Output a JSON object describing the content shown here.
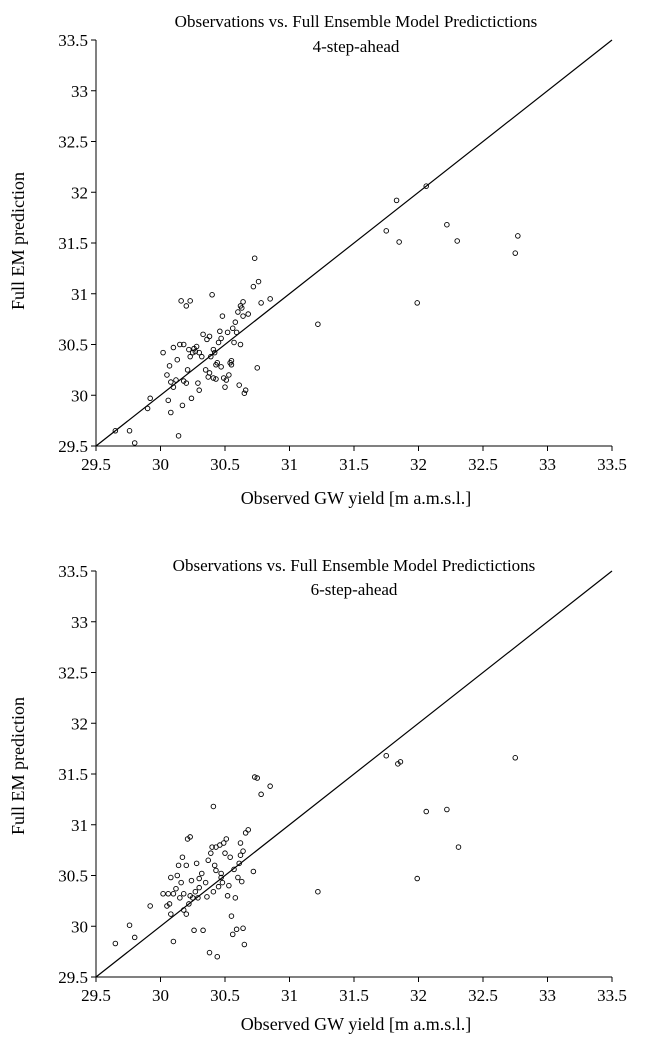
{
  "chart_data": [
    {
      "type": "scatter",
      "title": "Observations vs. Full Ensemble Model Predictictions",
      "subtitle": "4-step-ahead",
      "xlabel": "Observed GW yield [m a.m.s.l.]",
      "ylabel": "Full EM prediction",
      "xlim": [
        29.5,
        33.5
      ],
      "ylim": [
        29.5,
        33.5
      ],
      "xticks": [
        "29.5",
        "30",
        "30.5",
        "31",
        "31.5",
        "32",
        "32.5",
        "33",
        "33.5"
      ],
      "yticks": [
        "29.5",
        "30",
        "30.5",
        "31",
        "31.5",
        "32",
        "32.5",
        "33",
        "33.5"
      ],
      "grid": false,
      "reference_line": {
        "x": [
          29.5,
          33.5
        ],
        "y": [
          29.5,
          33.5
        ]
      },
      "series": [
        {
          "x": [
            29.65,
            29.76,
            29.8,
            29.9,
            29.92,
            30.02,
            30.05,
            30.06,
            30.07,
            30.08,
            30.08,
            30.1,
            30.1,
            30.12,
            30.13,
            30.14,
            30.15,
            30.16,
            30.17,
            30.18,
            30.18,
            30.2,
            30.2,
            30.21,
            30.22,
            30.23,
            30.23,
            30.24,
            30.25,
            30.26,
            30.27,
            30.28,
            30.29,
            30.3,
            30.3,
            30.32,
            30.33,
            30.35,
            30.36,
            30.37,
            30.38,
            30.38,
            30.39,
            30.4,
            30.41,
            30.41,
            30.42,
            30.43,
            30.43,
            30.44,
            30.45,
            30.46,
            30.47,
            30.47,
            30.48,
            30.49,
            30.5,
            30.51,
            30.52,
            30.53,
            30.54,
            30.55,
            30.55,
            30.56,
            30.57,
            30.58,
            30.59,
            30.6,
            30.61,
            30.62,
            30.62,
            30.63,
            30.64,
            30.64,
            30.65,
            30.66,
            30.68,
            30.72,
            30.73,
            30.75,
            30.76,
            30.78,
            30.85,
            31.22,
            31.75,
            31.83,
            31.85,
            31.99,
            32.06,
            32.22,
            32.3,
            32.75,
            32.77
          ],
          "y": [
            29.65,
            29.65,
            29.53,
            29.87,
            29.97,
            30.42,
            30.2,
            29.95,
            30.29,
            30.13,
            29.83,
            30.08,
            30.47,
            30.15,
            30.35,
            29.6,
            30.5,
            30.93,
            29.9,
            30.14,
            30.5,
            30.12,
            30.88,
            30.25,
            30.45,
            30.38,
            30.93,
            29.97,
            30.42,
            30.46,
            30.43,
            30.48,
            30.12,
            30.42,
            30.05,
            30.38,
            30.6,
            30.25,
            30.55,
            30.18,
            30.58,
            30.22,
            30.38,
            30.99,
            30.45,
            30.17,
            30.42,
            30.3,
            30.16,
            30.32,
            30.52,
            30.63,
            30.56,
            30.28,
            30.78,
            30.17,
            30.08,
            30.15,
            30.62,
            30.2,
            30.32,
            30.34,
            30.3,
            30.66,
            30.52,
            30.72,
            30.62,
            30.82,
            30.1,
            30.88,
            30.5,
            30.86,
            30.92,
            30.78,
            30.02,
            30.05,
            30.8,
            31.07,
            31.35,
            30.27,
            31.12,
            30.91,
            30.95,
            30.7,
            31.62,
            31.92,
            31.51,
            30.91,
            32.06,
            31.68,
            31.52,
            31.4,
            31.57
          ]
        }
      ]
    },
    {
      "type": "scatter",
      "title": "Observations vs. Full Ensemble Model Predictictions",
      "subtitle": "6-step-ahead",
      "xlabel": "Observed GW yield [m a.m.s.l.]",
      "ylabel": "Full EM prediction",
      "xlim": [
        29.5,
        33.5
      ],
      "ylim": [
        29.5,
        33.5
      ],
      "xticks": [
        "29.5",
        "30",
        "30.5",
        "31",
        "31.5",
        "32",
        "32.5",
        "33",
        "33.5"
      ],
      "yticks": [
        "29.5",
        "30",
        "30.5",
        "31",
        "31.5",
        "32",
        "32.5",
        "33",
        "33.5"
      ],
      "grid": false,
      "reference_line": {
        "x": [
          29.5,
          33.5
        ],
        "y": [
          29.5,
          33.5
        ]
      },
      "series": [
        {
          "x": [
            29.65,
            29.76,
            29.8,
            29.92,
            30.02,
            30.05,
            30.06,
            30.07,
            30.08,
            30.08,
            30.1,
            30.1,
            30.12,
            30.13,
            30.14,
            30.15,
            30.16,
            30.17,
            30.18,
            30.18,
            30.2,
            30.2,
            30.21,
            30.22,
            30.23,
            30.23,
            30.24,
            30.25,
            30.26,
            30.27,
            30.28,
            30.29,
            30.3,
            30.3,
            30.32,
            30.33,
            30.35,
            30.36,
            30.37,
            30.38,
            30.39,
            30.4,
            30.41,
            30.41,
            30.42,
            30.43,
            30.43,
            30.44,
            30.45,
            30.46,
            30.47,
            30.47,
            30.48,
            30.49,
            30.5,
            30.51,
            30.52,
            30.53,
            30.54,
            30.55,
            30.56,
            30.57,
            30.58,
            30.59,
            30.6,
            30.61,
            30.62,
            30.62,
            30.63,
            30.64,
            30.64,
            30.65,
            30.66,
            30.68,
            30.72,
            30.73,
            30.75,
            30.78,
            30.85,
            31.22,
            31.75,
            31.84,
            31.86,
            31.99,
            32.06,
            32.22,
            32.31,
            32.75
          ],
          "y": [
            29.83,
            30.01,
            29.89,
            30.2,
            30.32,
            30.2,
            30.32,
            30.22,
            30.12,
            30.48,
            29.85,
            30.32,
            30.37,
            30.5,
            30.6,
            30.28,
            30.43,
            30.68,
            30.16,
            30.32,
            30.6,
            30.12,
            30.86,
            30.22,
            30.88,
            30.3,
            30.45,
            30.28,
            29.96,
            30.34,
            30.62,
            30.28,
            30.38,
            30.47,
            30.52,
            29.96,
            30.43,
            30.29,
            30.65,
            29.74,
            30.72,
            30.78,
            31.18,
            30.34,
            30.6,
            30.78,
            30.55,
            29.7,
            30.39,
            30.8,
            30.48,
            30.52,
            30.43,
            30.82,
            30.72,
            30.86,
            30.3,
            30.4,
            30.68,
            30.1,
            29.92,
            30.56,
            30.28,
            29.97,
            30.48,
            30.62,
            30.7,
            30.82,
            30.44,
            29.98,
            30.74,
            29.82,
            30.92,
            30.95,
            30.54,
            31.47,
            31.46,
            31.3,
            31.38,
            30.34,
            31.68,
            31.6,
            31.62,
            30.47,
            31.13,
            31.15,
            30.78,
            31.66
          ]
        }
      ]
    }
  ]
}
